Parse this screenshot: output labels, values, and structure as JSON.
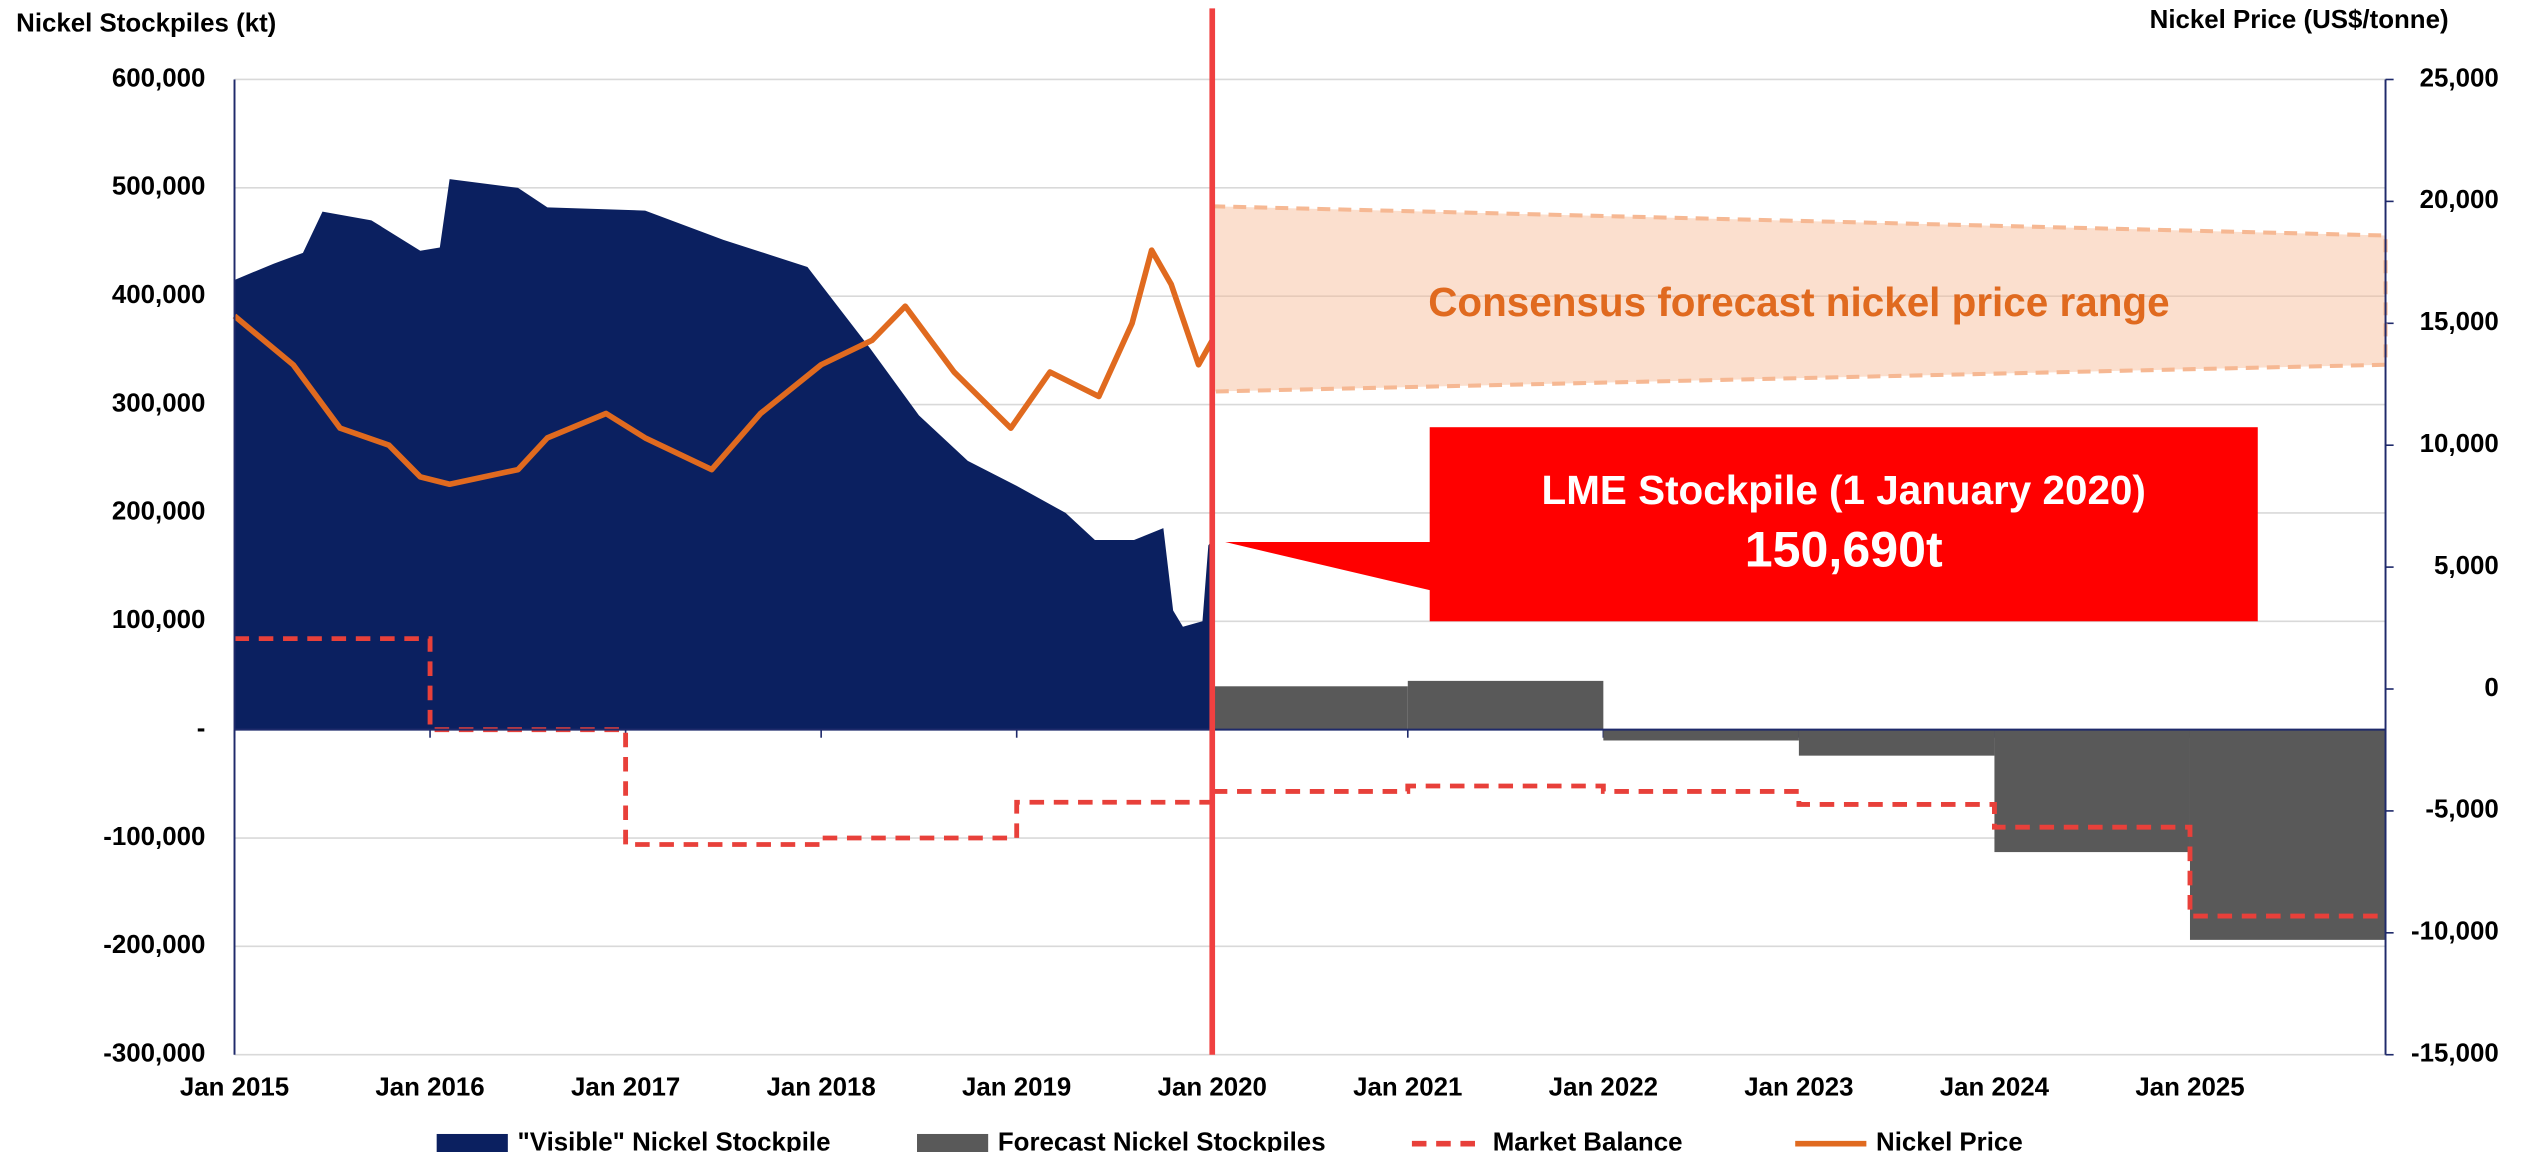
{
  "chart_data": {
    "type": "combo",
    "y_label": "Nickel Stockpiles (kt)",
    "y2_label": "Nickel Price (US$/tonne)",
    "xlim": [
      2015,
      2026
    ],
    "xticks": [
      {
        "value": 2015,
        "label": "Jan 2015"
      },
      {
        "value": 2016,
        "label": "Jan 2016"
      },
      {
        "value": 2017,
        "label": "Jan 2017"
      },
      {
        "value": 2018,
        "label": "Jan 2018"
      },
      {
        "value": 2019,
        "label": "Jan 2019"
      },
      {
        "value": 2020,
        "label": "Jan 2020"
      },
      {
        "value": 2021,
        "label": "Jan 2021"
      },
      {
        "value": 2022,
        "label": "Jan 2022"
      },
      {
        "value": 2023,
        "label": "Jan 2023"
      },
      {
        "value": 2024,
        "label": "Jan 2024"
      },
      {
        "value": 2025,
        "label": "Jan 2025"
      }
    ],
    "ylim": [
      -300000,
      600000
    ],
    "yticks": [
      {
        "value": 600000,
        "label": "600,000"
      },
      {
        "value": 500000,
        "label": "500,000"
      },
      {
        "value": 400000,
        "label": "400,000"
      },
      {
        "value": 300000,
        "label": "300,000"
      },
      {
        "value": 200000,
        "label": "200,000"
      },
      {
        "value": 100000,
        "label": "100,000"
      },
      {
        "value": 0,
        "label": "-"
      },
      {
        "value": -100000,
        "label": "-100,000"
      },
      {
        "value": -200000,
        "label": "-200,000"
      },
      {
        "value": -300000,
        "label": "-300,000"
      }
    ],
    "y2lim": [
      -15000,
      25000
    ],
    "y2ticks": [
      {
        "value": 25000,
        "label": "25,000"
      },
      {
        "value": 20000,
        "label": "20,000"
      },
      {
        "value": 15000,
        "label": "15,000"
      },
      {
        "value": 10000,
        "label": "10,000"
      },
      {
        "value": 5000,
        "label": "5,000"
      },
      0,
      {
        "value": -5000,
        "label": "-5,000"
      },
      {
        "value": -10000,
        "label": "-10,000"
      },
      {
        "value": -15000,
        "label": "-15,000"
      }
    ],
    "grid": true,
    "series": [
      {
        "name": "\"Visible\" Nickel Stockpile",
        "type": "area",
        "color": "#0b2060",
        "x": [
          2015.0,
          2015.2,
          2015.35,
          2015.45,
          2015.7,
          2015.95,
          2016.05,
          2016.1,
          2016.45,
          2016.6,
          2017.1,
          2017.5,
          2017.93,
          2018.25,
          2018.5,
          2018.75,
          2019.0,
          2019.25,
          2019.4,
          2019.6,
          2019.75,
          2019.8,
          2019.85,
          2019.95,
          2019.98,
          2020.0
        ],
        "values": [
          415000,
          430000,
          440000,
          478000,
          470000,
          442000,
          445000,
          508000,
          500000,
          482000,
          479000,
          452000,
          427000,
          352000,
          290000,
          248000,
          225000,
          200000,
          175000,
          175000,
          186000,
          110000,
          95000,
          100000,
          170000,
          175000
        ]
      },
      {
        "name": "Forecast Nickel Stockpiles",
        "type": "bar",
        "color": "#595959",
        "x": [
          2020,
          2021,
          2022,
          2023,
          2024,
          2025
        ],
        "values": [
          40000,
          45000,
          -10000,
          -24000,
          -113000,
          -194000
        ]
      },
      {
        "name": "Market Balance",
        "type": "step",
        "color": "#e8403a",
        "x": [
          2015,
          2016,
          2017,
          2018,
          2019,
          2020,
          2021,
          2022,
          2023,
          2024,
          2025
        ],
        "values": [
          84000,
          0,
          -106000,
          -100000,
          -67000,
          -57000,
          -52000,
          -57000,
          -69000,
          -90000,
          -172000
        ]
      },
      {
        "name": "Nickel Price",
        "type": "line",
        "axis": "y2",
        "color": "#e06a1f",
        "x": [
          2015.0,
          2015.3,
          2015.54,
          2015.79,
          2015.95,
          2016.1,
          2016.45,
          2016.6,
          2016.9,
          2017.1,
          2017.44,
          2017.69,
          2018.0,
          2018.26,
          2018.43,
          2018.68,
          2018.97,
          2019.17,
          2019.42,
          2019.59,
          2019.69,
          2019.79,
          2019.93,
          2020.0
        ],
        "values": [
          15300,
          13300,
          10700,
          10000,
          8700,
          8400,
          9000,
          10300,
          11300,
          10300,
          9000,
          11300,
          13300,
          14300,
          15700,
          13000,
          10700,
          13000,
          12000,
          15000,
          18000,
          16600,
          13300,
          14300
        ]
      }
    ],
    "annotations": {
      "vline": {
        "x": 2020,
        "color": "#f04040"
      },
      "band": {
        "label": "Consensus forecast nickel price range",
        "x": [
          2020,
          2026
        ],
        "upper": [
          19800,
          18600
        ],
        "lower": [
          12200,
          13300
        ],
        "color": "#f6b893"
      },
      "callout": {
        "title": "LME Stockpile (1 January 2020)",
        "value": "150,690t",
        "color": "#ff0000"
      }
    }
  }
}
